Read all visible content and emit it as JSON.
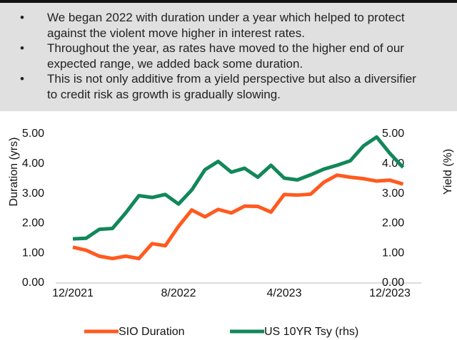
{
  "bullets": [
    "We began 2022 with duration under a year which helped to protect against the violent move higher in interest rates.",
    "Throughout the year, as rates have moved to the higher end of our expected range, we added back some duration.",
    "This is not only additive from a yield perspective but also a diversifier to credit risk as growth is gradually slowing."
  ],
  "chart_data": {
    "type": "line",
    "categories": [
      "12/2021",
      null,
      null,
      null,
      null,
      null,
      null,
      null,
      "8/2022",
      null,
      null,
      null,
      null,
      null,
      null,
      null,
      "4/2023",
      null,
      null,
      null,
      null,
      null,
      null,
      null,
      "12/2023",
      null
    ],
    "series": [
      {
        "name": "SIO Duration",
        "color": "#ff5a1f",
        "values": [
          1.2,
          1.1,
          0.9,
          0.82,
          0.9,
          0.82,
          1.32,
          1.25,
          1.9,
          2.45,
          2.22,
          2.47,
          2.35,
          2.58,
          2.57,
          2.38,
          2.97,
          2.95,
          2.98,
          3.38,
          3.62,
          3.55,
          3.5,
          3.42,
          3.45,
          3.32
        ]
      },
      {
        "name": "US 10YR Tsy (rhs)",
        "color": "#12875a",
        "axis": "y2",
        "values": [
          1.48,
          1.5,
          1.8,
          1.83,
          2.35,
          2.93,
          2.87,
          2.97,
          2.65,
          3.12,
          3.8,
          4.08,
          3.72,
          3.85,
          3.55,
          3.95,
          3.52,
          3.46,
          3.63,
          3.82,
          3.95,
          4.1,
          4.6,
          4.9,
          4.35,
          3.88
        ]
      }
    ],
    "ylabel": "Duration (yrs)",
    "y2label": "Yield (%)",
    "ylim": [
      0,
      5
    ],
    "yticks": [
      {
        "value": 0,
        "label": "0.00"
      },
      {
        "value": 1,
        "label": "1.00"
      },
      {
        "value": 2,
        "label": "2.00"
      },
      {
        "value": 3,
        "label": "3.00"
      },
      {
        "value": 4,
        "label": "4.00"
      },
      {
        "value": 5,
        "label": "5.00"
      }
    ],
    "y2lim": [
      0,
      5
    ],
    "y2ticks": [
      {
        "value": 0,
        "label": "0.00"
      },
      {
        "value": 1,
        "label": "1.00"
      },
      {
        "value": 2,
        "label": "2.00"
      },
      {
        "value": 3,
        "label": "3.00"
      },
      {
        "value": 4,
        "label": "4.00"
      },
      {
        "value": 5,
        "label": "5.00"
      }
    ],
    "legend": "bottom"
  }
}
